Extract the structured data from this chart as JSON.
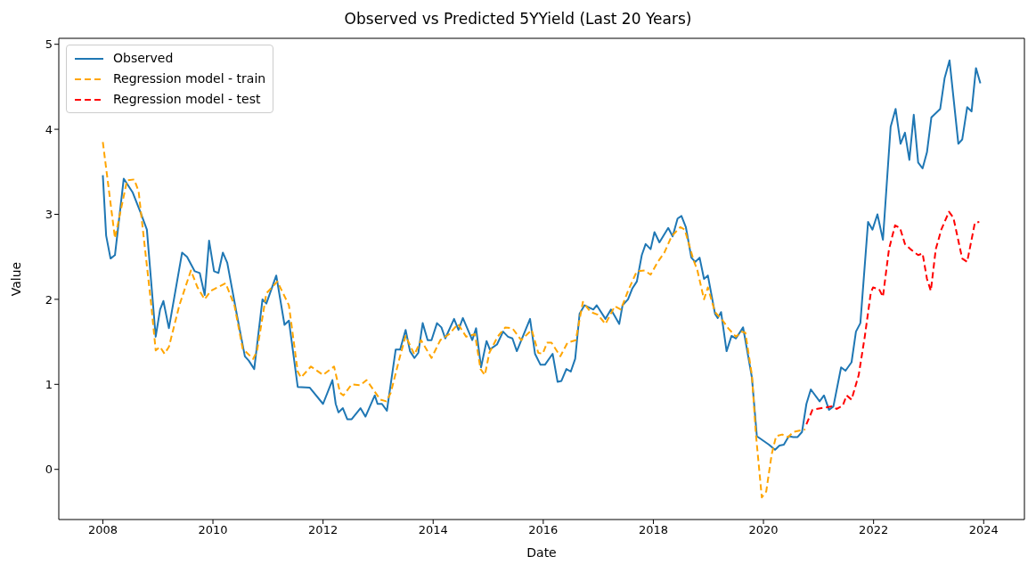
{
  "chart_data": {
    "type": "line",
    "title": "Observed vs Predicted 5YYield (Last 20 Years)",
    "xlabel": "Date",
    "ylabel": "Value",
    "xlim": [
      2007.2,
      2024.74
    ],
    "xticks": [
      2008,
      2010,
      2012,
      2014,
      2016,
      2018,
      2020,
      2022,
      2024
    ],
    "ylim": [
      -0.59,
      5.07
    ],
    "yticks": [
      0,
      1,
      2,
      3,
      4,
      5
    ],
    "grid": false,
    "legend": "top left",
    "series": [
      {
        "name": "Observed",
        "color": "#1f77b4",
        "line_style": "solid",
        "x": [
          2008.0,
          2008.06,
          2008.14,
          2008.22,
          2008.38,
          2008.54,
          2008.68,
          2008.8,
          2008.96,
          2009.04,
          2009.1,
          2009.2,
          2009.44,
          2009.53,
          2009.67,
          2009.76,
          2009.85,
          2009.93,
          2010.02,
          2010.1,
          2010.18,
          2010.26,
          2010.44,
          2010.58,
          2010.65,
          2010.75,
          2010.9,
          2010.97,
          2011.15,
          2011.3,
          2011.38,
          2011.54,
          2011.76,
          2012.0,
          2012.17,
          2012.23,
          2012.28,
          2012.36,
          2012.44,
          2012.52,
          2012.68,
          2012.77,
          2012.94,
          2012.99,
          2013.07,
          2013.16,
          2013.32,
          2013.4,
          2013.5,
          2013.58,
          2013.66,
          2013.73,
          2013.81,
          2013.9,
          2013.97,
          2014.07,
          2014.15,
          2014.22,
          2014.38,
          2014.46,
          2014.54,
          2014.71,
          2014.78,
          2014.87,
          2014.97,
          2015.03,
          2015.16,
          2015.27,
          2015.36,
          2015.44,
          2015.52,
          2015.76,
          2015.85,
          2015.95,
          2016.03,
          2016.17,
          2016.26,
          2016.33,
          2016.42,
          2016.5,
          2016.58,
          2016.66,
          2016.75,
          2016.91,
          2016.97,
          2017.13,
          2017.23,
          2017.38,
          2017.44,
          2017.54,
          2017.62,
          2017.7,
          2017.79,
          2017.86,
          2017.95,
          2018.02,
          2018.11,
          2018.27,
          2018.35,
          2018.44,
          2018.51,
          2018.59,
          2018.69,
          2018.76,
          2018.84,
          2018.92,
          2018.99,
          2019.12,
          2019.17,
          2019.23,
          2019.33,
          2019.42,
          2019.5,
          2019.63,
          2019.79,
          2019.88,
          2020.1,
          2020.21,
          2020.29,
          2020.37,
          2020.46,
          2020.54,
          2020.62,
          2020.7,
          2020.78,
          2020.86,
          2021.02,
          2021.1,
          2021.19,
          2021.27,
          2021.41,
          2021.49,
          2021.6,
          2021.68,
          2021.76,
          2021.9,
          2021.98,
          2022.07,
          2022.17,
          2022.31,
          2022.4,
          2022.49,
          2022.57,
          2022.65,
          2022.73,
          2022.81,
          2022.89,
          2022.97,
          2023.05,
          2023.21,
          2023.29,
          2023.38,
          2023.54,
          2023.61,
          2023.7,
          2023.78,
          2023.86,
          2023.94
        ],
        "values": [
          3.46,
          2.75,
          2.48,
          2.52,
          3.42,
          3.26,
          3.03,
          2.82,
          1.56,
          1.88,
          1.98,
          1.66,
          2.55,
          2.5,
          2.33,
          2.31,
          2.05,
          2.69,
          2.33,
          2.31,
          2.55,
          2.43,
          1.8,
          1.33,
          1.28,
          1.18,
          2.0,
          1.95,
          2.28,
          1.7,
          1.75,
          0.97,
          0.96,
          0.77,
          1.05,
          0.77,
          0.67,
          0.72,
          0.59,
          0.59,
          0.72,
          0.62,
          0.87,
          0.77,
          0.77,
          0.69,
          1.41,
          1.41,
          1.64,
          1.39,
          1.31,
          1.37,
          1.72,
          1.52,
          1.52,
          1.72,
          1.67,
          1.54,
          1.77,
          1.64,
          1.78,
          1.52,
          1.66,
          1.2,
          1.51,
          1.41,
          1.47,
          1.62,
          1.56,
          1.54,
          1.39,
          1.77,
          1.36,
          1.23,
          1.23,
          1.36,
          1.03,
          1.04,
          1.18,
          1.15,
          1.3,
          1.83,
          1.93,
          1.88,
          1.93,
          1.77,
          1.88,
          1.71,
          1.93,
          2.0,
          2.13,
          2.21,
          2.52,
          2.65,
          2.59,
          2.79,
          2.67,
          2.84,
          2.74,
          2.95,
          2.98,
          2.85,
          2.49,
          2.44,
          2.49,
          2.24,
          2.28,
          1.83,
          1.78,
          1.85,
          1.39,
          1.57,
          1.54,
          1.67,
          1.08,
          0.39,
          0.29,
          0.23,
          0.28,
          0.29,
          0.39,
          0.38,
          0.38,
          0.44,
          0.77,
          0.94,
          0.8,
          0.87,
          0.7,
          0.74,
          1.2,
          1.16,
          1.26,
          1.62,
          1.72,
          2.91,
          2.82,
          3.0,
          2.7,
          4.03,
          4.24,
          3.83,
          3.96,
          3.64,
          4.17,
          3.61,
          3.54,
          3.73,
          4.14,
          4.24,
          4.6,
          4.81,
          3.83,
          3.88,
          4.26,
          4.21,
          4.72,
          4.54
        ]
      },
      {
        "name": "Regression model - train",
        "color": "#ffa500",
        "line_style": "dashed",
        "x": [
          2008.0,
          2008.22,
          2008.44,
          2008.57,
          2008.65,
          2008.88,
          2008.96,
          2009.04,
          2009.12,
          2009.2,
          2009.39,
          2009.6,
          2009.72,
          2009.85,
          2009.96,
          2010.23,
          2010.39,
          2010.54,
          2010.73,
          2010.8,
          2010.97,
          2011.17,
          2011.38,
          2011.54,
          2011.6,
          2011.78,
          2012.0,
          2012.2,
          2012.31,
          2012.37,
          2012.52,
          2012.68,
          2012.79,
          2012.91,
          2013.04,
          2013.15,
          2013.23,
          2013.39,
          2013.5,
          2013.66,
          2013.78,
          2013.97,
          2014.13,
          2014.29,
          2014.45,
          2014.6,
          2014.76,
          2014.86,
          2014.94,
          2015.02,
          2015.17,
          2015.31,
          2015.44,
          2015.6,
          2015.79,
          2015.91,
          2015.99,
          2016.07,
          2016.15,
          2016.31,
          2016.44,
          2016.59,
          2016.72,
          2016.86,
          2016.99,
          2017.13,
          2017.3,
          2017.41,
          2017.54,
          2017.7,
          2017.84,
          2017.95,
          2018.08,
          2018.2,
          2018.33,
          2018.49,
          2018.57,
          2018.73,
          2018.8,
          2018.92,
          2018.99,
          2019.12,
          2019.26,
          2019.36,
          2019.5,
          2019.6,
          2019.67,
          2019.79,
          2019.86,
          2019.97,
          2020.05,
          2020.15,
          2020.23,
          2020.34,
          2020.45,
          2020.54,
          2020.69,
          2020.76
        ],
        "values": [
          3.85,
          2.72,
          3.4,
          3.41,
          3.27,
          1.93,
          1.4,
          1.44,
          1.36,
          1.44,
          1.93,
          2.34,
          2.14,
          2.0,
          2.1,
          2.19,
          1.93,
          1.42,
          1.3,
          1.39,
          2.07,
          2.21,
          1.93,
          1.15,
          1.08,
          1.21,
          1.11,
          1.21,
          0.9,
          0.87,
          1.0,
          0.99,
          1.05,
          0.94,
          0.82,
          0.8,
          0.9,
          1.31,
          1.57,
          1.35,
          1.52,
          1.31,
          1.52,
          1.59,
          1.71,
          1.56,
          1.59,
          1.18,
          1.11,
          1.37,
          1.56,
          1.67,
          1.66,
          1.52,
          1.64,
          1.37,
          1.36,
          1.49,
          1.49,
          1.33,
          1.49,
          1.52,
          1.97,
          1.85,
          1.82,
          1.71,
          1.92,
          1.88,
          2.1,
          2.33,
          2.34,
          2.29,
          2.44,
          2.55,
          2.74,
          2.85,
          2.82,
          2.46,
          2.34,
          2.0,
          2.14,
          1.85,
          1.75,
          1.66,
          1.56,
          1.62,
          1.61,
          1.11,
          0.43,
          -0.33,
          -0.26,
          0.18,
          0.39,
          0.41,
          0.38,
          0.44,
          0.46,
          0.47
        ]
      },
      {
        "name": "Regression model - test",
        "color": "#ff0000",
        "line_style": "dashed",
        "x": [
          2020.78,
          2020.89,
          2021.05,
          2021.24,
          2021.33,
          2021.44,
          2021.51,
          2021.6,
          2021.73,
          2021.84,
          2021.95,
          2021.99,
          2022.1,
          2022.17,
          2022.28,
          2022.39,
          2022.48,
          2022.57,
          2022.67,
          2022.81,
          2022.89,
          2022.97,
          2023.04,
          2023.13,
          2023.23,
          2023.37,
          2023.45,
          2023.61,
          2023.7,
          2023.84,
          2023.92
        ],
        "values": [
          0.53,
          0.7,
          0.72,
          0.74,
          0.71,
          0.75,
          0.87,
          0.82,
          1.11,
          1.56,
          2.08,
          2.14,
          2.12,
          2.03,
          2.59,
          2.87,
          2.84,
          2.65,
          2.59,
          2.52,
          2.54,
          2.24,
          2.1,
          2.59,
          2.82,
          3.03,
          2.96,
          2.48,
          2.44,
          2.9,
          2.91
        ]
      }
    ]
  }
}
